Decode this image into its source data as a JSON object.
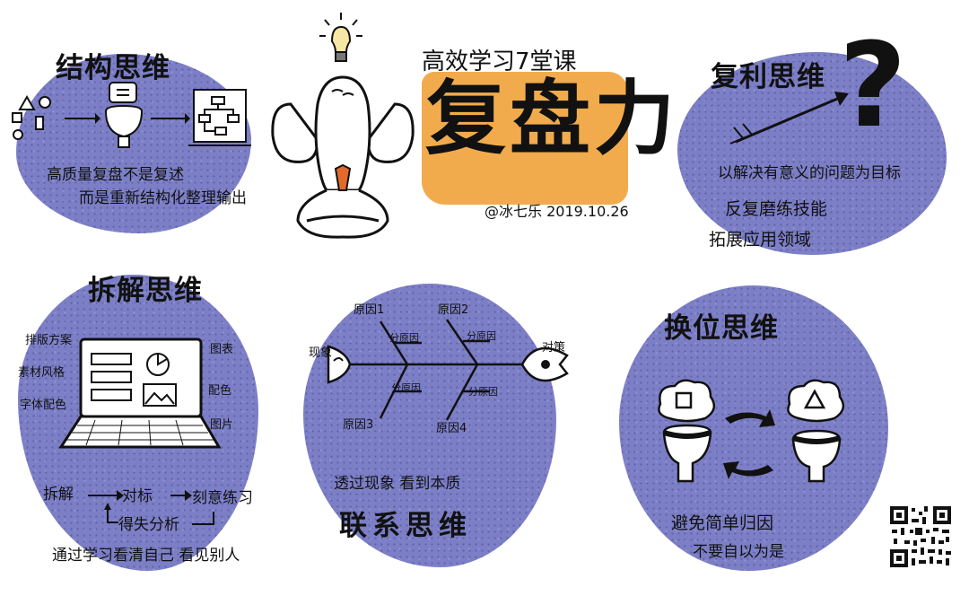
{
  "header": {
    "subtitle": "高效学习7堂课",
    "main_title": "复盘力",
    "author_date": "@冰七乐 2019.10.26"
  },
  "panels": {
    "structure": {
      "title": "结构思维",
      "lines": [
        "高质量复盘不是复述",
        "而是重新结构化整理输出"
      ]
    },
    "compound": {
      "title": "复利思维",
      "lines": [
        "以解决有意义的问题为目标",
        "反复磨练技能",
        "拓展应用领域"
      ]
    },
    "decompose": {
      "title": "拆解思维",
      "left_labels": [
        "排版方案",
        "素材风格",
        "字体配色"
      ],
      "right_labels": [
        "图表",
        "配色",
        "图片"
      ],
      "flow": [
        "拆解",
        "对标",
        "刻意练习",
        "得失分析"
      ],
      "caption": "通过学习看清自己 看见别人"
    },
    "relation": {
      "title": "联系思维",
      "head_left": "现象",
      "head_right": "对策",
      "causes": [
        "原因1",
        "原因2",
        "原因3",
        "原因4"
      ],
      "sub_causes": [
        "分原因",
        "分原因",
        "分原因",
        "分原因"
      ],
      "caption": "透过现象 看到本质"
    },
    "transpose": {
      "title": "换位思维",
      "lines": [
        "避免简单归因",
        "不要自以为是"
      ]
    }
  },
  "colors": {
    "blob": "#7c7fc6",
    "ink": "#111111",
    "highlight": "#f0a23a"
  },
  "icons": [
    "lightbulb-icon",
    "question-mark-icon",
    "arrow-icon",
    "laptop-icon",
    "fishbone-icon",
    "qr-code-icon"
  ]
}
